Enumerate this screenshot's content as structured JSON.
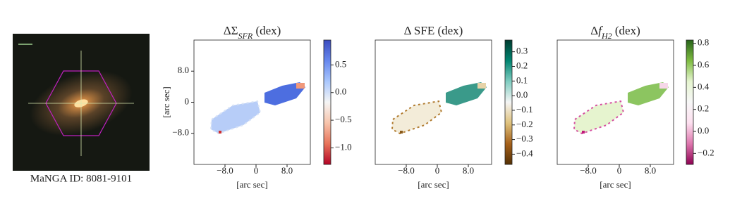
{
  "image": {
    "caption": "MaNGA ID: 8081-9101"
  },
  "chart_data": [
    {
      "type": "heatmap",
      "title": [
        {
          "text": "ΔΣ"
        },
        {
          "text": "SFR",
          "sub": true,
          "italic": true
        },
        {
          "text": " (dex)"
        }
      ],
      "xlabel": "[arc sec]",
      "ylabel": "[arc sec]",
      "xlim": [
        -16,
        14
      ],
      "ylim": [
        -16,
        16
      ],
      "xticks": [
        {
          "value": -8,
          "label": "−8.0"
        },
        0,
        {
          "value": 8,
          "label": "8.0"
        }
      ],
      "yticks": [
        {
          "value": 8,
          "label": "8.0"
        },
        0,
        {
          "value": -8,
          "label": "−8.0"
        }
      ],
      "clim": [
        -1.3,
        0.95
      ],
      "cticks": [
        0.5,
        {
          "value": 0,
          "label": "0.0"
        },
        {
          "value": -0.5,
          "label": "−0.5"
        },
        {
          "value": -1,
          "label": "−1.0"
        }
      ],
      "cmap": [
        "#b40426",
        "#e8735a",
        "#f7c4ab",
        "#f5f5f5",
        "#aac7fd",
        "#6788ee",
        "#3b4cc0"
      ]
    },
    {
      "type": "heatmap",
      "title": [
        {
          "text": "Δ SFE (dex)"
        }
      ],
      "xlabel": "[arc sec]",
      "xlim": [
        -16,
        14
      ],
      "ylim": [
        -16,
        16
      ],
      "xticks": [
        {
          "value": -8,
          "label": "−8.0"
        },
        0,
        {
          "value": 8,
          "label": "8.0"
        }
      ],
      "clim": [
        -0.47,
        0.38
      ],
      "cticks": [
        0.3,
        0.2,
        0.1,
        {
          "value": 0,
          "label": "0.0"
        },
        {
          "value": -0.1,
          "label": "−0.1"
        },
        {
          "value": -0.2,
          "label": "−0.2"
        },
        {
          "value": -0.3,
          "label": "−0.3"
        },
        {
          "value": -0.4,
          "label": "−0.4"
        }
      ],
      "cmap": [
        "#543005",
        "#a6611a",
        "#dfc27d",
        "#f5f5f5",
        "#80cdc1",
        "#018571",
        "#003c30"
      ]
    },
    {
      "type": "heatmap",
      "title": [
        {
          "text": "Δ"
        },
        {
          "text": "f",
          "italic": true
        },
        {
          "text": "H2",
          "sub": true,
          "italic": true
        },
        {
          "text": " (dex)"
        }
      ],
      "xlabel": "[arc sec]",
      "xlim": [
        -16,
        14
      ],
      "ylim": [
        -16,
        16
      ],
      "xticks": [
        {
          "value": -8,
          "label": "−8.0"
        },
        0,
        {
          "value": 8,
          "label": "8.0"
        }
      ],
      "clim": [
        -0.3,
        0.83
      ],
      "cticks": [
        0.8,
        0.6,
        0.4,
        0.2,
        {
          "value": 0,
          "label": "0.0"
        },
        {
          "value": -0.2,
          "label": "−0.2"
        }
      ],
      "cmap": [
        "#8e0152",
        "#de77ae",
        "#fde0ef",
        "#f7f7f7",
        "#e6f5d0",
        "#7fbc41",
        "#276419"
      ]
    }
  ]
}
